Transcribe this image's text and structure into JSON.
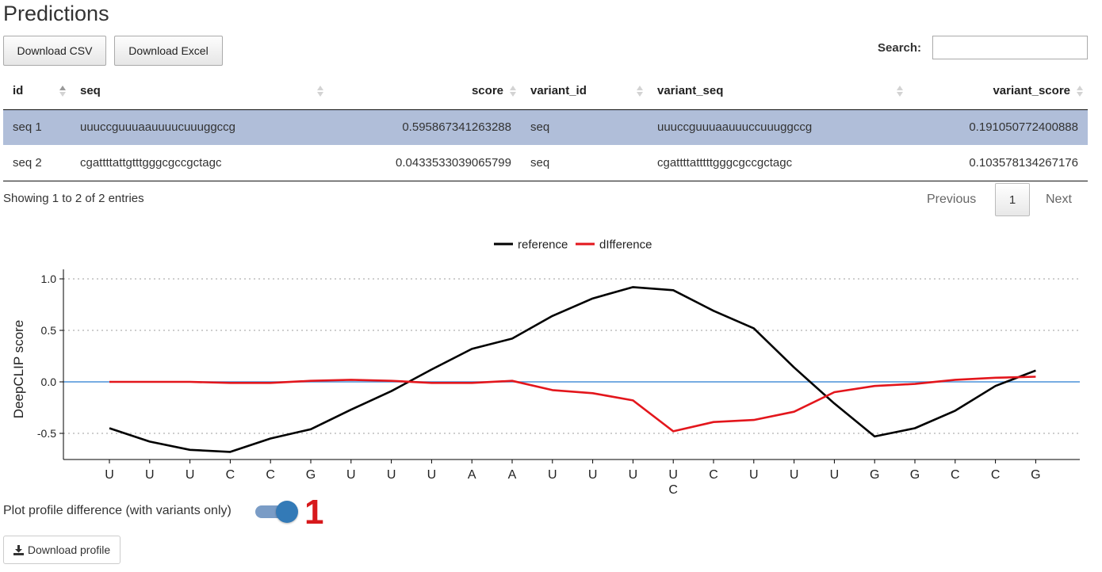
{
  "page": {
    "title": "Predictions"
  },
  "toolbar": {
    "csv_label": "Download CSV",
    "excel_label": "Download Excel"
  },
  "search": {
    "label": "Search:",
    "value": ""
  },
  "table": {
    "columns": [
      "id",
      "seq",
      "score",
      "variant_id",
      "variant_seq",
      "variant_score"
    ],
    "rows": [
      [
        "seq 1",
        "uuuccguuuaauuuucuuuggccg",
        "0.595867341263288",
        "seq",
        "uuuccguuuaauuuccuuuggccg",
        "0.191050772400888"
      ],
      [
        "seq 2",
        "cgattttattgtttgggcgccgctagc",
        "0.0433533039065799",
        "seq",
        "cgattttatttttgggcgccgctagc",
        "0.103578134267176"
      ]
    ]
  },
  "table_info": "Showing 1 to 2 of 2 entries",
  "pagination": {
    "previous": "Previous",
    "current": "1",
    "next": "Next"
  },
  "chart_data": {
    "type": "line",
    "ylabel": "DeepCLIP score",
    "ylim": [
      -0.75,
      1.0
    ],
    "yticks": [
      "1.0",
      "0.5",
      "0.0",
      "-0.5"
    ],
    "x": [
      "U",
      "U",
      "U",
      "C",
      "C",
      "G",
      "U",
      "U",
      "U",
      "A",
      "A",
      "U",
      "U",
      "U",
      "U",
      "C",
      "U",
      "U",
      "U",
      "G",
      "G",
      "C",
      "C",
      "G"
    ],
    "x_variant_labels": {
      "14": "C"
    },
    "legend_position": "top",
    "grid": "horizontal dotted",
    "zero_line_color": "#4a90d9",
    "series": [
      {
        "name": "reference",
        "color": "#000000",
        "values": [
          -0.45,
          -0.58,
          -0.66,
          -0.68,
          -0.55,
          -0.46,
          -0.27,
          -0.09,
          0.12,
          0.32,
          0.42,
          0.64,
          0.81,
          0.92,
          0.89,
          0.69,
          0.52,
          0.14,
          -0.21,
          -0.53,
          -0.45,
          -0.28,
          -0.04,
          0.11
        ]
      },
      {
        "name": "dIfference",
        "color": "#e3161c",
        "values": [
          0.0,
          0.0,
          0.0,
          -0.01,
          -0.01,
          0.01,
          0.02,
          0.01,
          -0.01,
          -0.01,
          0.01,
          -0.08,
          -0.11,
          -0.18,
          -0.48,
          -0.39,
          -0.37,
          -0.29,
          -0.1,
          -0.04,
          -0.02,
          0.02,
          0.04,
          0.05
        ]
      }
    ]
  },
  "toggle": {
    "label": "Plot profile difference (with variants only)",
    "state": true
  },
  "annotation": "1",
  "download_profile": {
    "label": "Download profile",
    "icon": "download-icon"
  }
}
